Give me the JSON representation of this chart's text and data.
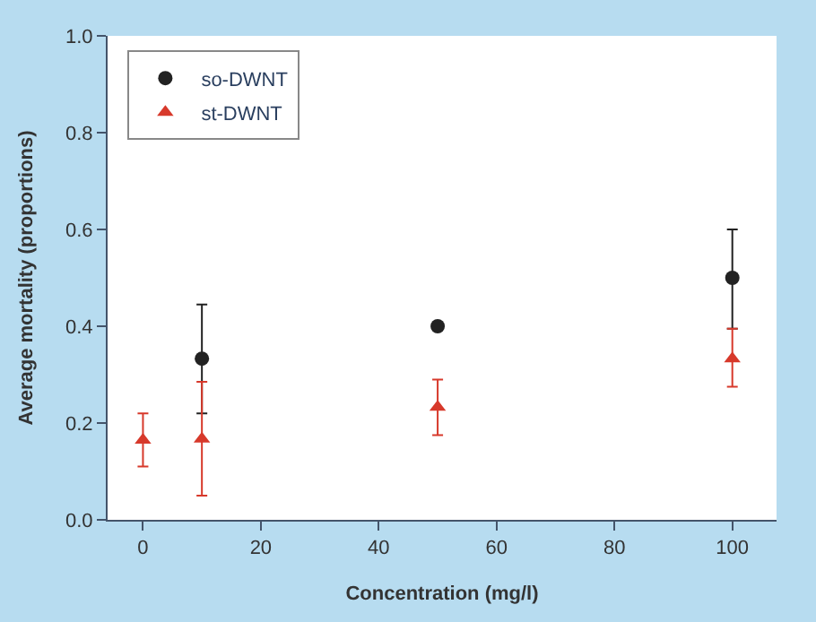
{
  "chart_data": {
    "type": "scatter",
    "xlabel": "Concentration (mg/l)",
    "ylabel": "Average mortality (proportions)",
    "xlim": [
      -6,
      107.5
    ],
    "xticks": [
      0,
      20,
      40,
      60,
      80,
      100
    ],
    "ylim": [
      0,
      1
    ],
    "yticks": [
      "0.0",
      0.2,
      0.4,
      0.6,
      0.8,
      "1.0"
    ],
    "grid": false,
    "legend": "top left",
    "series": [
      {
        "name": "so-DWNT",
        "color": "#222222",
        "marker": "circle",
        "x": [
          10,
          50,
          100
        ],
        "values": [
          0.333,
          0.4,
          0.5
        ],
        "errors": [
          [
            0.22,
            0.445
          ],
          null,
          [
            0.395,
            0.6
          ]
        ]
      },
      {
        "name": "st-DWNT",
        "color": "#d7392b",
        "marker": "triangle",
        "x": [
          0,
          10,
          50,
          100
        ],
        "values": [
          0.165,
          0.167,
          0.233,
          0.333
        ],
        "errors": [
          [
            0.11,
            0.22
          ],
          [
            0.05,
            0.285
          ],
          [
            0.175,
            0.29
          ],
          [
            0.275,
            0.395
          ]
        ]
      }
    ]
  }
}
